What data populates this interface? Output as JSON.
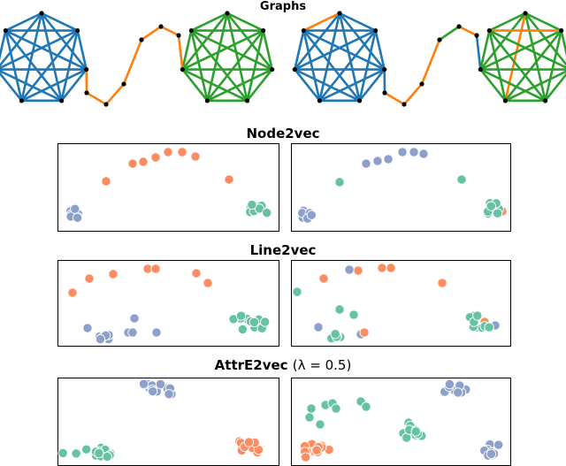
{
  "titles": {
    "graphs": "Graphs",
    "node2vec": "Node2vec",
    "line2vec": "Line2vec",
    "attre2vec_name": "AttrE2vec",
    "attre2vec_param": "(λ = 0.5)"
  },
  "colors": {
    "blue_edge": "#1f77b4",
    "green_edge": "#2ca02c",
    "orange_edge": "#ff7f0e",
    "blue_point": "#8da0cb",
    "green_point": "#66c2a5",
    "orange_point": "#fc8d62"
  }
}
